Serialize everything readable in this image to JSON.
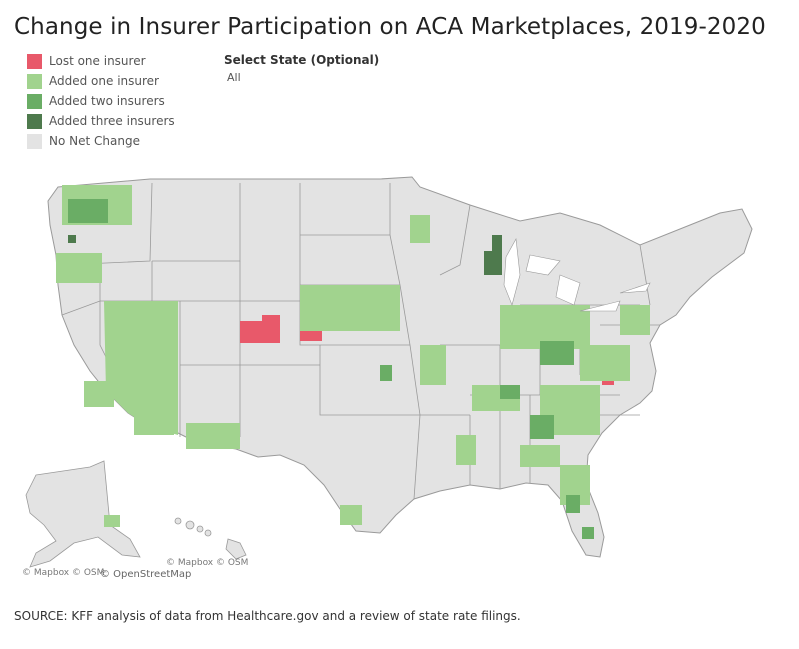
{
  "title": "Change in Insurer Participation on ACA Marketplaces, 2019-2020",
  "legend": [
    {
      "label": "Lost one insurer",
      "color": "#e8596a"
    },
    {
      "label": "Added one insurer",
      "color": "#a1d38e"
    },
    {
      "label": "Added two insurers",
      "color": "#6aad65"
    },
    {
      "label": "Added three insurers",
      "color": "#4e7a4d"
    },
    {
      "label": "No Net Change",
      "color": "#e3e3e3"
    }
  ],
  "filter": {
    "label": "Select State (Optional)",
    "value": "All"
  },
  "map": {
    "colors": {
      "base": "#e3e3e3",
      "border": "#ffffff",
      "state_border": "#9a9a9a"
    },
    "attribution_main": "© Mapbox © OSM",
    "attribution_inset": "© Mapbox © OSM",
    "attribution_osm": "© OpenStreetMap"
  },
  "source": "SOURCE: KFF analysis of data from Healthcare.gov and a review of state rate filings."
}
